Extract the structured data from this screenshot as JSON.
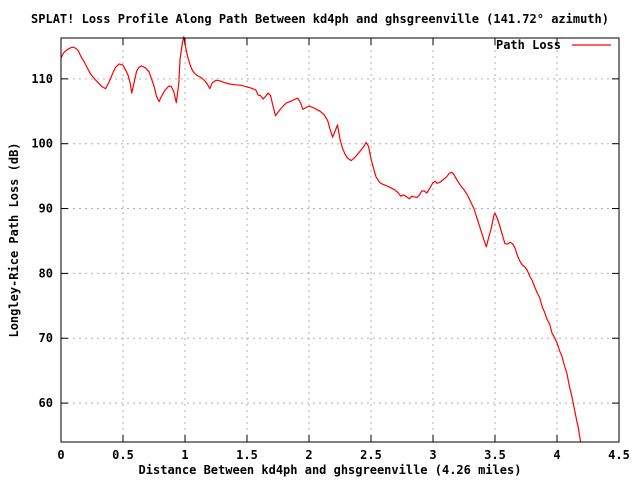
{
  "title": "SPLAT! Loss Profile Along Path Between kd4ph and ghsgreenville (141.72° azimuth)",
  "legend": {
    "label": "Path Loss"
  },
  "colors": {
    "series": "#ff0000",
    "grid": "#b0b0b0",
    "axis": "#000000",
    "text": "#000000",
    "background": "#ffffff"
  },
  "chart_data": {
    "type": "line",
    "title": "SPLAT! Loss Profile Along Path Between kd4ph and ghsgreenville (141.72° azimuth)",
    "xlabel": "Distance Between kd4ph and ghsgreenville (4.26 miles)",
    "ylabel": "Longley-Rice Path Loss (dB)",
    "xlim": [
      0,
      4.5
    ],
    "ylim": [
      54,
      116.3
    ],
    "x_ticks": [
      0,
      0.5,
      1,
      1.5,
      2,
      2.5,
      3,
      3.5,
      4,
      4.5
    ],
    "x_tick_labels": [
      "0",
      "0.5",
      "1",
      "1.5",
      "2",
      "2.5",
      "3",
      "3.5",
      "4",
      "4.5"
    ],
    "y_ticks": [
      60,
      70,
      80,
      90,
      100,
      110
    ],
    "y_tick_labels": [
      "60",
      "70",
      "80",
      "90",
      "100",
      "110"
    ],
    "grid": true,
    "grid_style": "dashed",
    "legend_position": "top-right-inside",
    "series": [
      {
        "name": "Path Loss",
        "color": "#ff0000",
        "points": [
          [
            0.0,
            113.2
          ],
          [
            0.02,
            114.0
          ],
          [
            0.05,
            114.5
          ],
          [
            0.08,
            114.8
          ],
          [
            0.1,
            114.9
          ],
          [
            0.12,
            114.7
          ],
          [
            0.14,
            114.3
          ],
          [
            0.16,
            113.5
          ],
          [
            0.19,
            112.5
          ],
          [
            0.22,
            111.4
          ],
          [
            0.24,
            110.7
          ],
          [
            0.27,
            110.0
          ],
          [
            0.3,
            109.4
          ],
          [
            0.33,
            108.8
          ],
          [
            0.36,
            108.5
          ],
          [
            0.39,
            109.6
          ],
          [
            0.42,
            111.0
          ],
          [
            0.44,
            111.8
          ],
          [
            0.47,
            112.3
          ],
          [
            0.5,
            112.1
          ],
          [
            0.52,
            111.4
          ],
          [
            0.54,
            110.6
          ],
          [
            0.56,
            109.2
          ],
          [
            0.57,
            107.8
          ],
          [
            0.59,
            109.5
          ],
          [
            0.61,
            111.2
          ],
          [
            0.63,
            111.8
          ],
          [
            0.65,
            112.0
          ],
          [
            0.68,
            111.7
          ],
          [
            0.71,
            111.1
          ],
          [
            0.73,
            110.0
          ],
          [
            0.75,
            108.9
          ],
          [
            0.77,
            107.3
          ],
          [
            0.79,
            106.5
          ],
          [
            0.81,
            107.3
          ],
          [
            0.84,
            108.3
          ],
          [
            0.87,
            108.9
          ],
          [
            0.89,
            108.8
          ],
          [
            0.91,
            108.0
          ],
          [
            0.93,
            106.3
          ],
          [
            0.95,
            109.3
          ],
          [
            0.96,
            113.0
          ],
          [
            0.98,
            115.6
          ],
          [
            0.99,
            116.5
          ],
          [
            1.0,
            115.4
          ],
          [
            1.02,
            113.5
          ],
          [
            1.04,
            112.2
          ],
          [
            1.06,
            111.3
          ],
          [
            1.08,
            110.8
          ],
          [
            1.1,
            110.5
          ],
          [
            1.13,
            110.2
          ],
          [
            1.16,
            109.7
          ],
          [
            1.18,
            109.2
          ],
          [
            1.2,
            108.5
          ],
          [
            1.22,
            109.4
          ],
          [
            1.25,
            109.8
          ],
          [
            1.28,
            109.7
          ],
          [
            1.32,
            109.4
          ],
          [
            1.36,
            109.2
          ],
          [
            1.4,
            109.1
          ],
          [
            1.45,
            109.0
          ],
          [
            1.49,
            108.8
          ],
          [
            1.53,
            108.6
          ],
          [
            1.57,
            108.3
          ],
          [
            1.59,
            107.5
          ],
          [
            1.61,
            107.4
          ],
          [
            1.63,
            106.9
          ],
          [
            1.65,
            107.3
          ],
          [
            1.67,
            107.8
          ],
          [
            1.69,
            107.4
          ],
          [
            1.71,
            105.8
          ],
          [
            1.73,
            104.3
          ],
          [
            1.76,
            105.1
          ],
          [
            1.79,
            105.8
          ],
          [
            1.82,
            106.3
          ],
          [
            1.86,
            106.6
          ],
          [
            1.89,
            106.9
          ],
          [
            1.91,
            107.0
          ],
          [
            1.93,
            106.4
          ],
          [
            1.95,
            105.3
          ],
          [
            1.98,
            105.6
          ],
          [
            2.0,
            105.8
          ],
          [
            2.03,
            105.6
          ],
          [
            2.06,
            105.3
          ],
          [
            2.09,
            105.0
          ],
          [
            2.12,
            104.5
          ],
          [
            2.15,
            103.6
          ],
          [
            2.17,
            102.2
          ],
          [
            2.19,
            101.0
          ],
          [
            2.21,
            101.9
          ],
          [
            2.23,
            102.9
          ],
          [
            2.25,
            100.7
          ],
          [
            2.27,
            99.3
          ],
          [
            2.29,
            98.4
          ],
          [
            2.31,
            97.8
          ],
          [
            2.34,
            97.4
          ],
          [
            2.36,
            97.7
          ],
          [
            2.38,
            98.1
          ],
          [
            2.41,
            98.8
          ],
          [
            2.44,
            99.5
          ],
          [
            2.46,
            100.2
          ],
          [
            2.48,
            99.6
          ],
          [
            2.5,
            97.7
          ],
          [
            2.52,
            96.2
          ],
          [
            2.54,
            94.9
          ],
          [
            2.57,
            94.0
          ],
          [
            2.6,
            93.7
          ],
          [
            2.63,
            93.5
          ],
          [
            2.66,
            93.2
          ],
          [
            2.69,
            92.9
          ],
          [
            2.72,
            92.4
          ],
          [
            2.74,
            91.9
          ],
          [
            2.76,
            92.1
          ],
          [
            2.78,
            91.9
          ],
          [
            2.81,
            91.5
          ],
          [
            2.83,
            91.9
          ],
          [
            2.85,
            91.8
          ],
          [
            2.87,
            91.7
          ],
          [
            2.89,
            92.1
          ],
          [
            2.91,
            92.7
          ],
          [
            2.93,
            92.7
          ],
          [
            2.95,
            92.4
          ],
          [
            2.97,
            93.0
          ],
          [
            3.0,
            94.0
          ],
          [
            3.02,
            94.2
          ],
          [
            3.03,
            93.9
          ],
          [
            3.05,
            94.0
          ],
          [
            3.08,
            94.4
          ],
          [
            3.11,
            94.9
          ],
          [
            3.13,
            95.4
          ],
          [
            3.15,
            95.6
          ],
          [
            3.17,
            95.2
          ],
          [
            3.19,
            94.5
          ],
          [
            3.22,
            93.6
          ],
          [
            3.25,
            92.9
          ],
          [
            3.28,
            92.0
          ],
          [
            3.31,
            90.8
          ],
          [
            3.33,
            90.0
          ],
          [
            3.35,
            88.8
          ],
          [
            3.37,
            87.6
          ],
          [
            3.39,
            86.4
          ],
          [
            3.41,
            85.2
          ],
          [
            3.43,
            84.1
          ],
          [
            3.45,
            85.6
          ],
          [
            3.47,
            87.0
          ],
          [
            3.49,
            88.9
          ],
          [
            3.5,
            89.3
          ],
          [
            3.52,
            88.4
          ],
          [
            3.54,
            87.2
          ],
          [
            3.56,
            85.9
          ],
          [
            3.58,
            84.6
          ],
          [
            3.6,
            84.5
          ],
          [
            3.62,
            84.8
          ],
          [
            3.64,
            84.6
          ],
          [
            3.66,
            84.0
          ],
          [
            3.68,
            82.8
          ],
          [
            3.7,
            81.9
          ],
          [
            3.72,
            81.3
          ],
          [
            3.74,
            81.0
          ],
          [
            3.76,
            80.5
          ],
          [
            3.78,
            79.6
          ],
          [
            3.8,
            78.9
          ],
          [
            3.82,
            77.9
          ],
          [
            3.84,
            77.0
          ],
          [
            3.86,
            76.3
          ],
          [
            3.88,
            74.9
          ],
          [
            3.9,
            74.0
          ],
          [
            3.92,
            72.9
          ],
          [
            3.94,
            72.2
          ],
          [
            3.96,
            70.8
          ],
          [
            3.98,
            70.1
          ],
          [
            4.0,
            69.3
          ],
          [
            4.02,
            68.1
          ],
          [
            4.04,
            67.2
          ],
          [
            4.06,
            65.8
          ],
          [
            4.08,
            64.6
          ],
          [
            4.1,
            62.6
          ],
          [
            4.12,
            61.0
          ],
          [
            4.14,
            59.1
          ],
          [
            4.16,
            57.2
          ],
          [
            4.17,
            56.4
          ],
          [
            4.18,
            55.2
          ],
          [
            4.19,
            54.0
          ]
        ]
      }
    ]
  }
}
